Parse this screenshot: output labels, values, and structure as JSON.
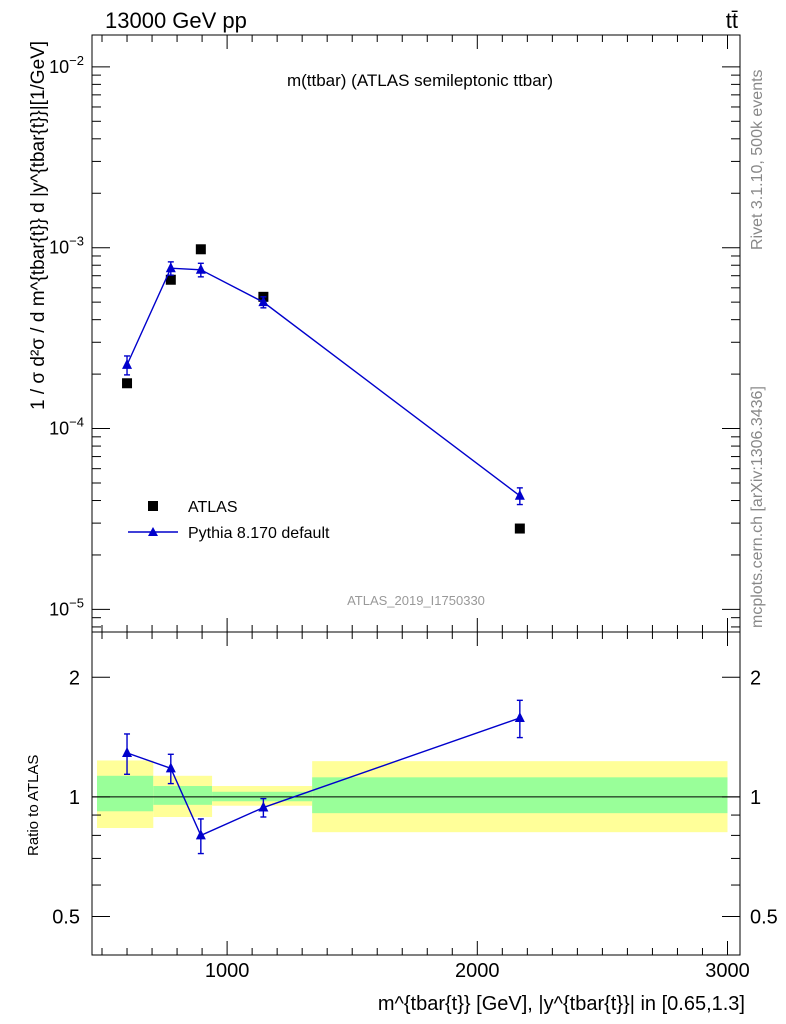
{
  "header": {
    "energy_label": "13000 GeV pp",
    "process_label": "tt̄"
  },
  "side_labels": {
    "rivet": "Rivet 3.1.10,  500k events",
    "mcplots": "mcplots.cern.ch [arXiv:1306.3436]"
  },
  "chart_data": [
    {
      "type": "scatter",
      "title": "m(ttbar) (ATLAS semileptonic ttbar)",
      "ylabel": "1 / σ d²σ / d m^{tbar{t}} d |y^{tbar{t}}|[1/GeV]",
      "yscale": "log",
      "ylim": [
        7.5e-06,
        0.015
      ],
      "xlim": [
        460,
        3050
      ],
      "y_ticks": [
        {
          "value": 0.01,
          "base": "10",
          "exp": "−2"
        },
        {
          "value": 0.001,
          "base": "10",
          "exp": "−3"
        },
        {
          "value": 0.0001,
          "base": "10",
          "exp": "−4"
        },
        {
          "value": 1e-05,
          "base": "10",
          "exp": "−5"
        }
      ],
      "analysis_label": "ATLAS_2019_I1750330",
      "legend_position": "bottom-left",
      "series": [
        {
          "name": "ATLAS",
          "marker": "square",
          "color": "#000000",
          "x": [
            600,
            775,
            895,
            1145,
            2170
          ],
          "y": [
            0.000178,
            0.000665,
            0.00098,
            0.000535,
            2.8e-05
          ]
        },
        {
          "name": "Pythia 8.170 default",
          "marker": "triangle",
          "color": "#0000cc",
          "x": [
            600,
            775,
            895,
            1145,
            2170
          ],
          "y": [
            0.000225,
            0.00077,
            0.000755,
            0.0005,
            4.25e-05
          ],
          "err_low": [
            2.7e-05,
            6.5e-05,
            6.5e-05,
            3.5e-05,
            4.5e-06
          ],
          "err_high": [
            2.7e-05,
            6.5e-05,
            6.5e-05,
            3.5e-05,
            4.5e-06
          ]
        }
      ]
    },
    {
      "type": "scatter",
      "ylabel": "Ratio to ATLAS",
      "yscale": "log",
      "ylim": [
        0.4,
        2.6
      ],
      "xlim": [
        460,
        3050
      ],
      "xlabel": "m^{tbar{t}} [GeV], |y^{tbar{t}}| in [0.65,1.3]",
      "x_ticks": [
        1000,
        2000,
        3000
      ],
      "y_ticks": [
        0.5,
        1,
        2
      ],
      "reference_line": 1,
      "bands": [
        {
          "x": [
            480,
            705
          ],
          "yellow": [
            0.835,
            1.235
          ],
          "green": [
            0.92,
            1.13
          ]
        },
        {
          "x": [
            705,
            940
          ],
          "yellow": [
            0.89,
            1.13
          ],
          "green": [
            0.955,
            1.065
          ]
        },
        {
          "x": [
            940,
            1340
          ],
          "yellow": [
            0.95,
            1.065
          ],
          "green": [
            0.975,
            1.03
          ]
        },
        {
          "x": [
            1340,
            3000
          ],
          "yellow": [
            0.815,
            1.23
          ],
          "green": [
            0.91,
            1.12
          ]
        }
      ],
      "series": [
        {
          "name": "Pythia 8.170 default",
          "color": "#0000cc",
          "x": [
            600,
            775,
            895,
            1145,
            2170
          ],
          "y": [
            1.29,
            1.18,
            0.8,
            0.94,
            1.58
          ],
          "err": [
            0.15,
            0.1,
            0.08,
            0.05,
            0.17
          ]
        }
      ]
    }
  ]
}
